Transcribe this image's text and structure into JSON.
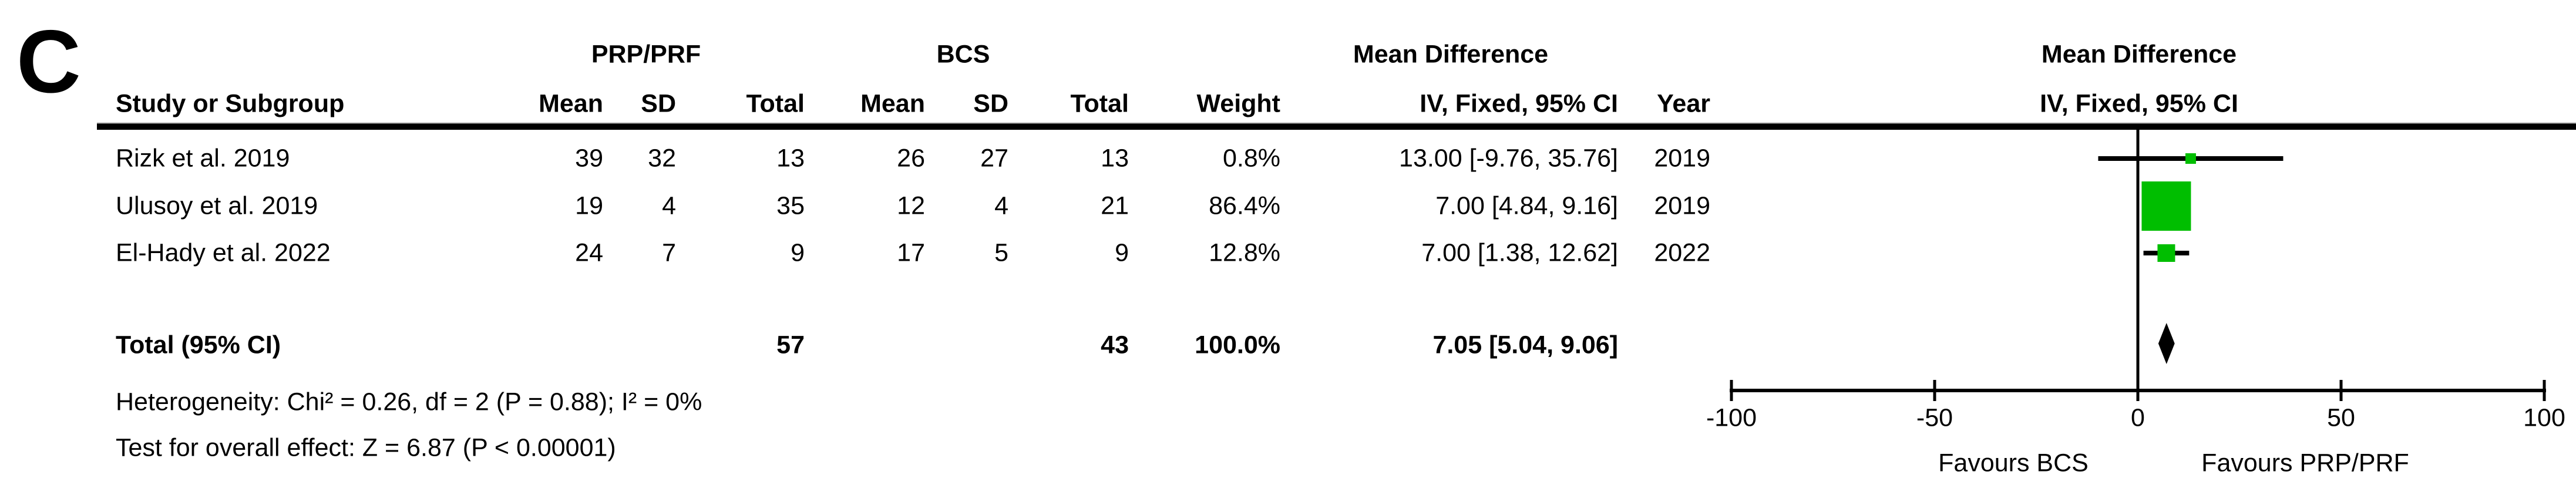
{
  "panel_label": "C",
  "table": {
    "group_headers": {
      "experimental": "PRP/PRF",
      "control": "BCS",
      "md_table": "Mean Difference",
      "md_plot": "Mean Difference"
    },
    "col_headers": {
      "study": "Study or Subgroup",
      "mean": "Mean",
      "sd": "SD",
      "total": "Total",
      "weight": "Weight",
      "iv_table": "IV, Fixed, 95% CI",
      "year": "Year",
      "iv_plot": "IV, Fixed, 95% CI"
    },
    "rows": [
      {
        "study": "Rizk et al. 2019",
        "mean1": "39",
        "sd1": "32",
        "total1": "13",
        "mean2": "26",
        "sd2": "27",
        "total2": "13",
        "weight": "0.8%",
        "md_ci": "13.00 [-9.76, 35.76]",
        "year": "2019"
      },
      {
        "study": "Ulusoy et al. 2019",
        "mean1": "19",
        "sd1": "4",
        "total1": "35",
        "mean2": "12",
        "sd2": "4",
        "total2": "21",
        "weight": "86.4%",
        "md_ci": "7.00 [4.84, 9.16]",
        "year": "2019"
      },
      {
        "study": "El-Hady et al. 2022",
        "mean1": "24",
        "sd1": "7",
        "total1": "9",
        "mean2": "17",
        "sd2": "5",
        "total2": "9",
        "weight": "12.8%",
        "md_ci": "7.00 [1.38, 12.62]",
        "year": "2022"
      }
    ],
    "total_row": {
      "label": "Total (95% CI)",
      "total1": "57",
      "total2": "43",
      "weight": "100.0%",
      "md_ci": "7.05 [5.04, 9.06]"
    },
    "footnotes": {
      "heterogeneity": "Heterogeneity: Chi² = 0.26, df = 2 (P = 0.88); I² = 0%",
      "overall_effect": "Test for overall effect: Z = 6.87 (P < 0.00001)"
    }
  },
  "chart_data": {
    "type": "forest",
    "title": "Mean Difference",
    "effect_measure": "IV, Fixed, 95% CI",
    "xlim": [
      -100,
      100
    ],
    "x_ticks": [
      -100,
      -50,
      0,
      50,
      100
    ],
    "x_axis_labels": {
      "left": "Favours BCS",
      "right": "Favours PRP/PRF"
    },
    "marker_color": "#00be00",
    "line_color": "#000000",
    "studies": [
      {
        "name": "Rizk et al. 2019",
        "md": 13.0,
        "ci_low": -9.76,
        "ci_high": 35.76,
        "weight_pct": 0.8,
        "year": 2019
      },
      {
        "name": "Ulusoy et al. 2019",
        "md": 7.0,
        "ci_low": 4.84,
        "ci_high": 9.16,
        "weight_pct": 86.4,
        "year": 2019
      },
      {
        "name": "El-Hady et al. 2022",
        "md": 7.0,
        "ci_low": 1.38,
        "ci_high": 12.62,
        "weight_pct": 12.8,
        "year": 2022
      }
    ],
    "total": {
      "label": "Total (95% CI)",
      "md": 7.05,
      "ci_low": 5.04,
      "ci_high": 9.06,
      "weight_pct": 100.0
    }
  }
}
